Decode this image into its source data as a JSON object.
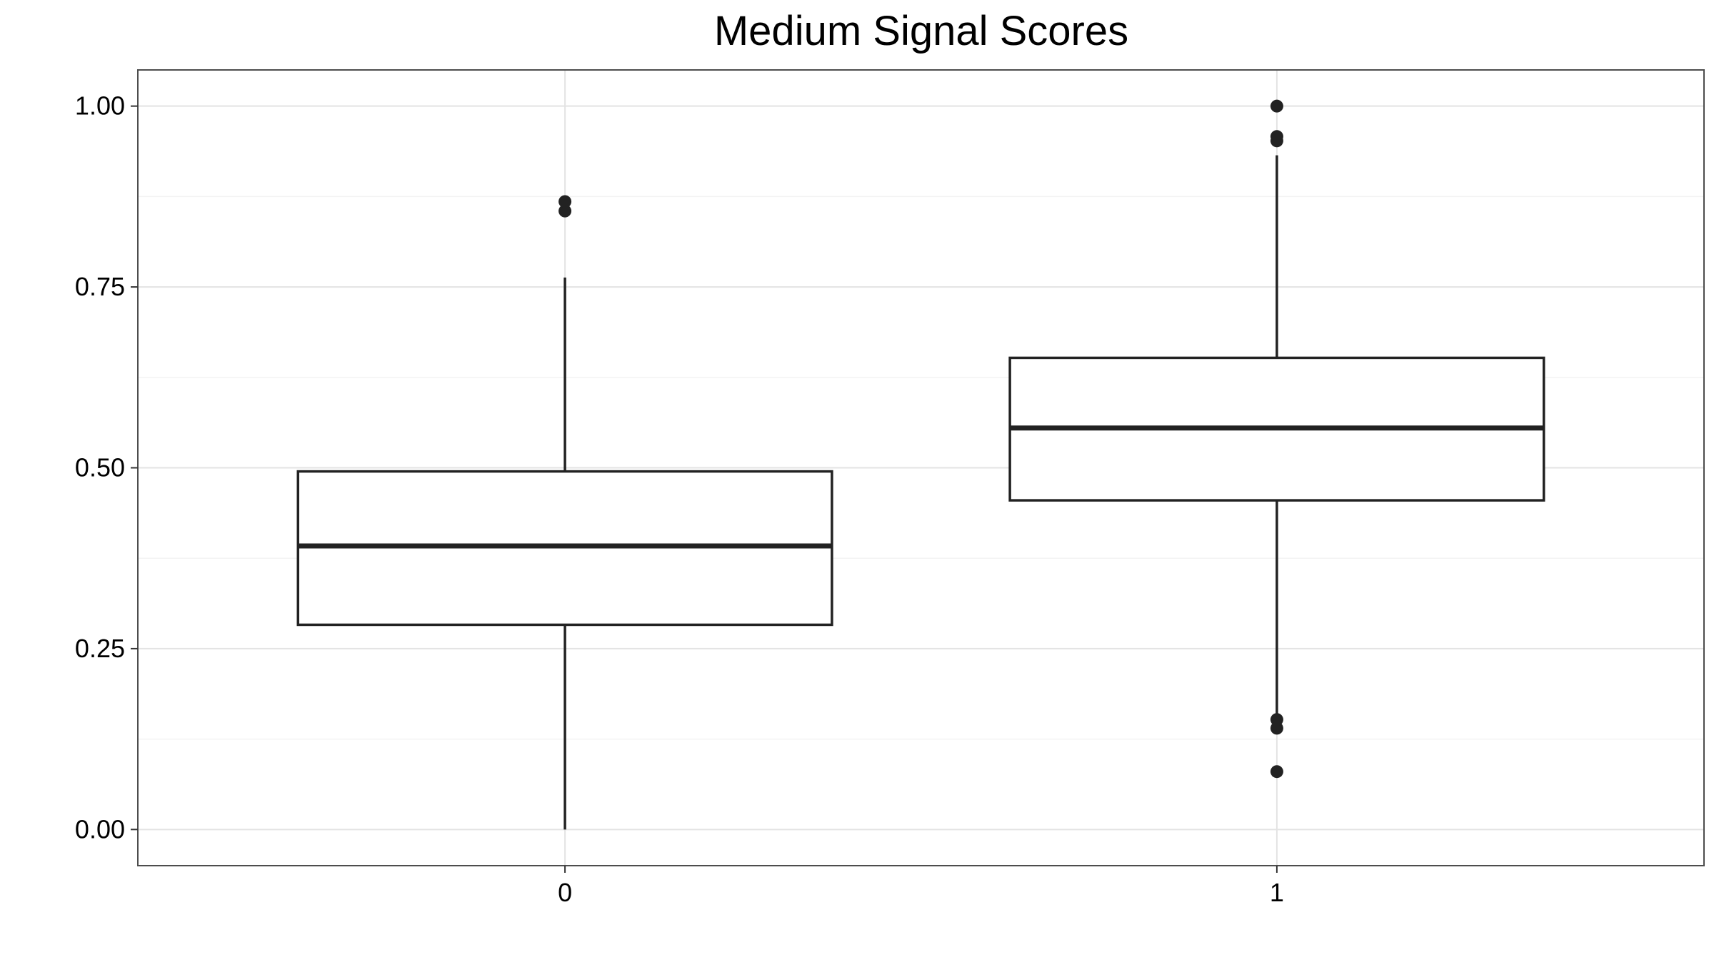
{
  "chart_data": {
    "type": "box",
    "title": "Medium Signal Scores",
    "xlabel": "",
    "ylabel": "",
    "categories": [
      "0",
      "1"
    ],
    "ylim": [
      -0.05,
      1.05
    ],
    "yticks": [
      0.0,
      0.25,
      0.5,
      0.75,
      1.0
    ],
    "ytick_labels": [
      "0.00",
      "0.25",
      "0.50",
      "0.75",
      "1.00"
    ],
    "grid": true,
    "legend": "none",
    "boxes": [
      {
        "category": "0",
        "whisker_low": 0.0,
        "q1": 0.283,
        "median": 0.392,
        "q3": 0.495,
        "whisker_high": 0.763,
        "outliers": [
          0.855,
          0.868
        ]
      },
      {
        "category": "1",
        "whisker_low": 0.152,
        "q1": 0.455,
        "median": 0.555,
        "q3": 0.652,
        "whisker_high": 0.932,
        "outliers": [
          0.08,
          0.14,
          0.152,
          0.952,
          0.958,
          1.0
        ]
      }
    ],
    "colors": {
      "box_stroke": "#222222",
      "box_fill": "#ffffff",
      "outlier": "#222222",
      "grid_major": "#e3e3e3",
      "grid_minor": "#f3f3f3",
      "panel_border": "#4d4d4d",
      "background": "#ffffff"
    }
  }
}
